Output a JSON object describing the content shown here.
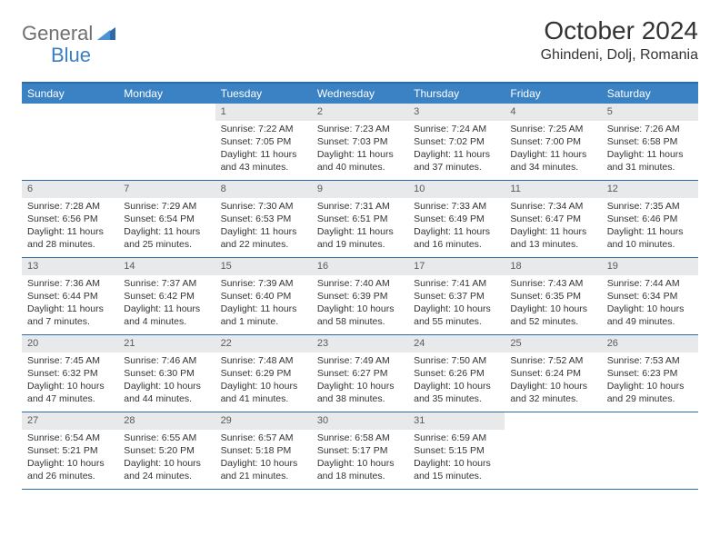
{
  "logo": {
    "text1": "General",
    "text2": "Blue"
  },
  "title": "October 2024",
  "location": "Ghindeni, Dolj, Romania",
  "colors": {
    "header_bg": "#3a82c4",
    "header_border": "#2f6aa8",
    "number_bg": "#e8e9ea",
    "logo_gray": "#707070",
    "logo_blue": "#3a7fc4"
  },
  "day_names": [
    "Sunday",
    "Monday",
    "Tuesday",
    "Wednesday",
    "Thursday",
    "Friday",
    "Saturday"
  ],
  "weeks": [
    [
      {
        "n": "",
        "sr": "",
        "ss": "",
        "dl": ""
      },
      {
        "n": "",
        "sr": "",
        "ss": "",
        "dl": ""
      },
      {
        "n": "1",
        "sr": "Sunrise: 7:22 AM",
        "ss": "Sunset: 7:05 PM",
        "dl": "Daylight: 11 hours and 43 minutes."
      },
      {
        "n": "2",
        "sr": "Sunrise: 7:23 AM",
        "ss": "Sunset: 7:03 PM",
        "dl": "Daylight: 11 hours and 40 minutes."
      },
      {
        "n": "3",
        "sr": "Sunrise: 7:24 AM",
        "ss": "Sunset: 7:02 PM",
        "dl": "Daylight: 11 hours and 37 minutes."
      },
      {
        "n": "4",
        "sr": "Sunrise: 7:25 AM",
        "ss": "Sunset: 7:00 PM",
        "dl": "Daylight: 11 hours and 34 minutes."
      },
      {
        "n": "5",
        "sr": "Sunrise: 7:26 AM",
        "ss": "Sunset: 6:58 PM",
        "dl": "Daylight: 11 hours and 31 minutes."
      }
    ],
    [
      {
        "n": "6",
        "sr": "Sunrise: 7:28 AM",
        "ss": "Sunset: 6:56 PM",
        "dl": "Daylight: 11 hours and 28 minutes."
      },
      {
        "n": "7",
        "sr": "Sunrise: 7:29 AM",
        "ss": "Sunset: 6:54 PM",
        "dl": "Daylight: 11 hours and 25 minutes."
      },
      {
        "n": "8",
        "sr": "Sunrise: 7:30 AM",
        "ss": "Sunset: 6:53 PM",
        "dl": "Daylight: 11 hours and 22 minutes."
      },
      {
        "n": "9",
        "sr": "Sunrise: 7:31 AM",
        "ss": "Sunset: 6:51 PM",
        "dl": "Daylight: 11 hours and 19 minutes."
      },
      {
        "n": "10",
        "sr": "Sunrise: 7:33 AM",
        "ss": "Sunset: 6:49 PM",
        "dl": "Daylight: 11 hours and 16 minutes."
      },
      {
        "n": "11",
        "sr": "Sunrise: 7:34 AM",
        "ss": "Sunset: 6:47 PM",
        "dl": "Daylight: 11 hours and 13 minutes."
      },
      {
        "n": "12",
        "sr": "Sunrise: 7:35 AM",
        "ss": "Sunset: 6:46 PM",
        "dl": "Daylight: 11 hours and 10 minutes."
      }
    ],
    [
      {
        "n": "13",
        "sr": "Sunrise: 7:36 AM",
        "ss": "Sunset: 6:44 PM",
        "dl": "Daylight: 11 hours and 7 minutes."
      },
      {
        "n": "14",
        "sr": "Sunrise: 7:37 AM",
        "ss": "Sunset: 6:42 PM",
        "dl": "Daylight: 11 hours and 4 minutes."
      },
      {
        "n": "15",
        "sr": "Sunrise: 7:39 AM",
        "ss": "Sunset: 6:40 PM",
        "dl": "Daylight: 11 hours and 1 minute."
      },
      {
        "n": "16",
        "sr": "Sunrise: 7:40 AM",
        "ss": "Sunset: 6:39 PM",
        "dl": "Daylight: 10 hours and 58 minutes."
      },
      {
        "n": "17",
        "sr": "Sunrise: 7:41 AM",
        "ss": "Sunset: 6:37 PM",
        "dl": "Daylight: 10 hours and 55 minutes."
      },
      {
        "n": "18",
        "sr": "Sunrise: 7:43 AM",
        "ss": "Sunset: 6:35 PM",
        "dl": "Daylight: 10 hours and 52 minutes."
      },
      {
        "n": "19",
        "sr": "Sunrise: 7:44 AM",
        "ss": "Sunset: 6:34 PM",
        "dl": "Daylight: 10 hours and 49 minutes."
      }
    ],
    [
      {
        "n": "20",
        "sr": "Sunrise: 7:45 AM",
        "ss": "Sunset: 6:32 PM",
        "dl": "Daylight: 10 hours and 47 minutes."
      },
      {
        "n": "21",
        "sr": "Sunrise: 7:46 AM",
        "ss": "Sunset: 6:30 PM",
        "dl": "Daylight: 10 hours and 44 minutes."
      },
      {
        "n": "22",
        "sr": "Sunrise: 7:48 AM",
        "ss": "Sunset: 6:29 PM",
        "dl": "Daylight: 10 hours and 41 minutes."
      },
      {
        "n": "23",
        "sr": "Sunrise: 7:49 AM",
        "ss": "Sunset: 6:27 PM",
        "dl": "Daylight: 10 hours and 38 minutes."
      },
      {
        "n": "24",
        "sr": "Sunrise: 7:50 AM",
        "ss": "Sunset: 6:26 PM",
        "dl": "Daylight: 10 hours and 35 minutes."
      },
      {
        "n": "25",
        "sr": "Sunrise: 7:52 AM",
        "ss": "Sunset: 6:24 PM",
        "dl": "Daylight: 10 hours and 32 minutes."
      },
      {
        "n": "26",
        "sr": "Sunrise: 7:53 AM",
        "ss": "Sunset: 6:23 PM",
        "dl": "Daylight: 10 hours and 29 minutes."
      }
    ],
    [
      {
        "n": "27",
        "sr": "Sunrise: 6:54 AM",
        "ss": "Sunset: 5:21 PM",
        "dl": "Daylight: 10 hours and 26 minutes."
      },
      {
        "n": "28",
        "sr": "Sunrise: 6:55 AM",
        "ss": "Sunset: 5:20 PM",
        "dl": "Daylight: 10 hours and 24 minutes."
      },
      {
        "n": "29",
        "sr": "Sunrise: 6:57 AM",
        "ss": "Sunset: 5:18 PM",
        "dl": "Daylight: 10 hours and 21 minutes."
      },
      {
        "n": "30",
        "sr": "Sunrise: 6:58 AM",
        "ss": "Sunset: 5:17 PM",
        "dl": "Daylight: 10 hours and 18 minutes."
      },
      {
        "n": "31",
        "sr": "Sunrise: 6:59 AM",
        "ss": "Sunset: 5:15 PM",
        "dl": "Daylight: 10 hours and 15 minutes."
      },
      {
        "n": "",
        "sr": "",
        "ss": "",
        "dl": ""
      },
      {
        "n": "",
        "sr": "",
        "ss": "",
        "dl": ""
      }
    ]
  ]
}
